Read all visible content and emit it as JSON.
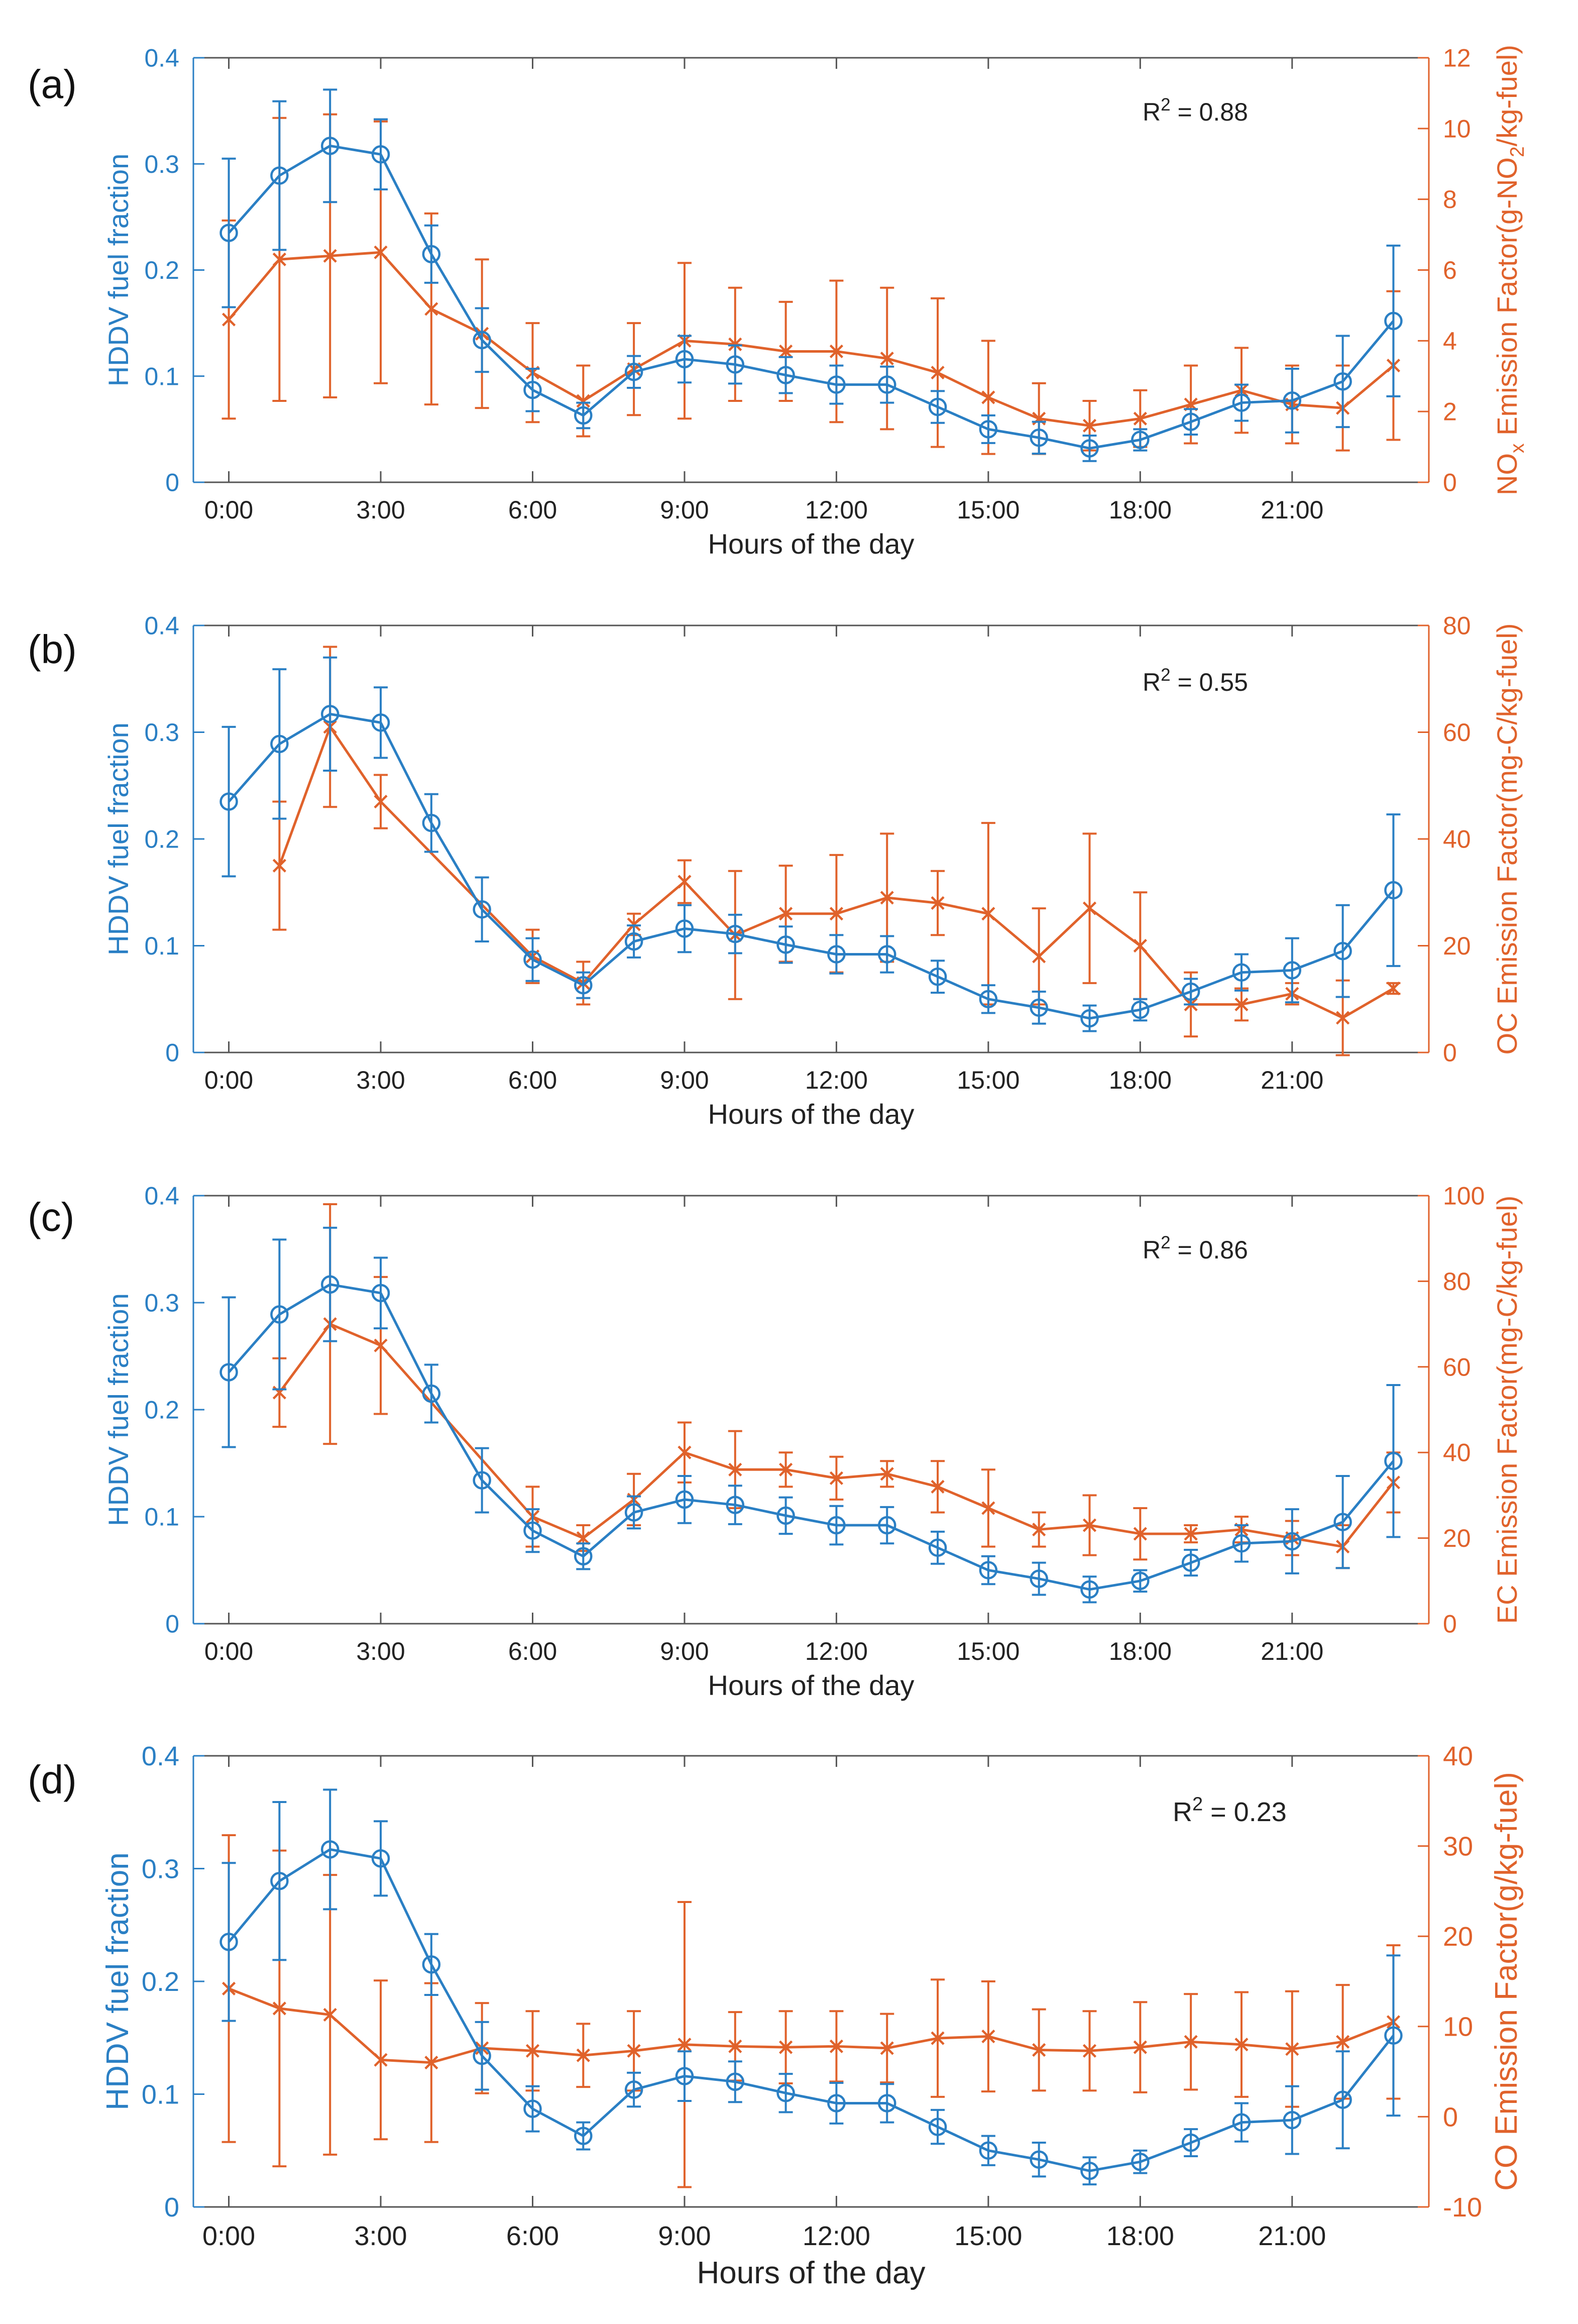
{
  "colors": {
    "hddv": "#2a7fc4",
    "emission": "#e0622b",
    "axis": "#555555",
    "text": "#222222"
  },
  "chart_data": [
    {
      "type": "line",
      "panel_label": "(a)",
      "r2_label": "R",
      "r2_sup": "2",
      "r2_value": " = 0.88",
      "xlabel": "Hours of the day",
      "ylabel_left": "HDDV fuel fraction",
      "ylabel_right_parts": [
        [
          "NO",
          ""
        ],
        [
          "x",
          "sub"
        ],
        [
          " Emission Factor(g-NO",
          ""
        ],
        [
          "2",
          "sub"
        ],
        [
          "/kg-fuel)",
          ""
        ]
      ],
      "ylim_left": [
        0,
        0.4
      ],
      "yticks_left": [
        0,
        0.1,
        0.2,
        0.3,
        0.4
      ],
      "ytick_labels_left": [
        "0",
        "0.1",
        "0.2",
        "0.3",
        "0.4"
      ],
      "ylim_right": [
        0,
        12
      ],
      "yticks_right": [
        0,
        2,
        4,
        6,
        8,
        10,
        12
      ],
      "ytick_labels_right": [
        "0",
        "2",
        "4",
        "6",
        "8",
        "10",
        "12"
      ],
      "xticks": [
        0,
        3,
        6,
        9,
        12,
        15,
        18,
        21
      ],
      "xtick_labels": [
        "0:00",
        "3:00",
        "6:00",
        "9:00",
        "12:00",
        "15:00",
        "18:00",
        "21:00"
      ],
      "series": [
        {
          "name": "HDDV fuel fraction",
          "axis": "left",
          "marker": "circle",
          "x": [
            0,
            1,
            2,
            3,
            4,
            5,
            6,
            7,
            8,
            9,
            10,
            11,
            12,
            13,
            14,
            15,
            16,
            17,
            18,
            19,
            20,
            21,
            22,
            23
          ],
          "values": [
            0.235,
            0.289,
            0.317,
            0.309,
            0.215,
            0.134,
            0.087,
            0.063,
            0.104,
            0.116,
            0.111,
            0.101,
            0.092,
            0.092,
            0.071,
            0.05,
            0.042,
            0.032,
            0.04,
            0.057,
            0.075,
            0.077,
            0.095,
            0.152
          ],
          "err": [
            0.07,
            0.07,
            0.053,
            0.033,
            0.027,
            0.03,
            0.02,
            0.012,
            0.015,
            0.022,
            0.018,
            0.017,
            0.018,
            0.017,
            0.015,
            0.013,
            0.015,
            0.012,
            0.01,
            0.012,
            0.017,
            0.03,
            0.043,
            0.071
          ]
        },
        {
          "name": "NOx Emission Factor",
          "axis": "right",
          "marker": "x",
          "x": [
            0,
            1,
            2,
            3,
            4,
            5,
            6,
            7,
            8,
            9,
            10,
            11,
            12,
            13,
            14,
            15,
            16,
            17,
            18,
            19,
            20,
            21,
            22,
            23
          ],
          "values": [
            4.6,
            6.3,
            6.4,
            6.5,
            4.9,
            4.2,
            3.1,
            2.3,
            3.2,
            4.0,
            3.9,
            3.7,
            3.7,
            3.5,
            3.1,
            2.4,
            1.8,
            1.6,
            1.8,
            2.2,
            2.6,
            2.2,
            2.1,
            3.3
          ],
          "err": [
            2.8,
            4.0,
            4.0,
            3.7,
            2.7,
            2.1,
            1.4,
            1.0,
            1.3,
            2.2,
            1.6,
            1.4,
            2.0,
            2.0,
            2.1,
            1.6,
            1.0,
            0.7,
            0.8,
            1.1,
            1.2,
            1.1,
            1.2,
            2.1
          ]
        }
      ]
    },
    {
      "type": "line",
      "panel_label": "(b)",
      "r2_label": "R",
      "r2_sup": "2",
      "r2_value": " = 0.55",
      "xlabel": "Hours of the day",
      "ylabel_left": "HDDV fuel fraction",
      "ylabel_right_parts": [
        [
          "OC Emission Factor(mg-C/kg-fuel)",
          ""
        ]
      ],
      "ylim_left": [
        0,
        0.4
      ],
      "yticks_left": [
        0,
        0.1,
        0.2,
        0.3,
        0.4
      ],
      "ytick_labels_left": [
        "0",
        "0.1",
        "0.2",
        "0.3",
        "0.4"
      ],
      "ylim_right": [
        0,
        80
      ],
      "yticks_right": [
        0,
        20,
        40,
        60,
        80
      ],
      "ytick_labels_right": [
        "0",
        "20",
        "40",
        "60",
        "80"
      ],
      "xticks": [
        0,
        3,
        6,
        9,
        12,
        15,
        18,
        21
      ],
      "xtick_labels": [
        "0:00",
        "3:00",
        "6:00",
        "9:00",
        "12:00",
        "15:00",
        "18:00",
        "21:00"
      ],
      "series": [
        {
          "name": "HDDV fuel fraction",
          "axis": "left",
          "marker": "circle",
          "x": [
            0,
            1,
            2,
            3,
            4,
            5,
            6,
            7,
            8,
            9,
            10,
            11,
            12,
            13,
            14,
            15,
            16,
            17,
            18,
            19,
            20,
            21,
            22,
            23
          ],
          "values": [
            0.235,
            0.289,
            0.317,
            0.309,
            0.215,
            0.134,
            0.087,
            0.063,
            0.104,
            0.116,
            0.111,
            0.101,
            0.092,
            0.092,
            0.071,
            0.05,
            0.042,
            0.032,
            0.04,
            0.057,
            0.075,
            0.077,
            0.095,
            0.152
          ],
          "err": [
            0.07,
            0.07,
            0.053,
            0.033,
            0.027,
            0.03,
            0.02,
            0.012,
            0.015,
            0.022,
            0.018,
            0.017,
            0.018,
            0.017,
            0.015,
            0.013,
            0.015,
            0.012,
            0.01,
            0.012,
            0.017,
            0.03,
            0.043,
            0.071
          ]
        },
        {
          "name": "OC Emission Factor",
          "axis": "right",
          "marker": "x",
          "x": [
            1,
            2,
            3,
            6,
            7,
            8,
            9,
            10,
            11,
            12,
            13,
            14,
            15,
            16,
            17,
            18,
            19,
            20,
            21,
            22,
            23
          ],
          "values": [
            35,
            61,
            47,
            18,
            13,
            24,
            32,
            22,
            26,
            26,
            29,
            28,
            26,
            18,
            27,
            20,
            9,
            9,
            11,
            6.5,
            12
          ],
          "err": [
            12,
            15,
            5,
            5,
            4,
            2,
            4,
            12,
            9,
            11,
            12,
            6,
            17,
            9,
            14,
            10,
            6,
            3,
            2,
            7,
            1
          ]
        }
      ]
    },
    {
      "type": "line",
      "panel_label": "(c)",
      "r2_label": "R",
      "r2_sup": "2",
      "r2_value": " = 0.86",
      "xlabel": "Hours of the day",
      "ylabel_left": "HDDV fuel fraction",
      "ylabel_right_parts": [
        [
          "EC Emission Factor(mg-C/kg-fuel)",
          ""
        ]
      ],
      "ylim_left": [
        0,
        0.4
      ],
      "yticks_left": [
        0,
        0.1,
        0.2,
        0.3,
        0.4
      ],
      "ytick_labels_left": [
        "0",
        "0.1",
        "0.2",
        "0.3",
        "0.4"
      ],
      "ylim_right": [
        0,
        100
      ],
      "yticks_right": [
        0,
        20,
        40,
        60,
        80,
        100
      ],
      "ytick_labels_right": [
        "0",
        "20",
        "40",
        "60",
        "80",
        "100"
      ],
      "xticks": [
        0,
        3,
        6,
        9,
        12,
        15,
        18,
        21
      ],
      "xtick_labels": [
        "0:00",
        "3:00",
        "6:00",
        "9:00",
        "12:00",
        "15:00",
        "18:00",
        "21:00"
      ],
      "series": [
        {
          "name": "HDDV fuel fraction",
          "axis": "left",
          "marker": "circle",
          "x": [
            0,
            1,
            2,
            3,
            4,
            5,
            6,
            7,
            8,
            9,
            10,
            11,
            12,
            13,
            14,
            15,
            16,
            17,
            18,
            19,
            20,
            21,
            22,
            23
          ],
          "values": [
            0.235,
            0.289,
            0.317,
            0.309,
            0.215,
            0.134,
            0.087,
            0.063,
            0.104,
            0.116,
            0.111,
            0.101,
            0.092,
            0.092,
            0.071,
            0.05,
            0.042,
            0.032,
            0.04,
            0.057,
            0.075,
            0.077,
            0.095,
            0.152
          ],
          "err": [
            0.07,
            0.07,
            0.053,
            0.033,
            0.027,
            0.03,
            0.02,
            0.012,
            0.015,
            0.022,
            0.018,
            0.017,
            0.018,
            0.017,
            0.015,
            0.013,
            0.015,
            0.012,
            0.01,
            0.012,
            0.017,
            0.03,
            0.043,
            0.071
          ]
        },
        {
          "name": "EC Emission Factor",
          "axis": "right",
          "marker": "x",
          "x": [
            1,
            2,
            3,
            6,
            7,
            8,
            9,
            10,
            11,
            12,
            13,
            14,
            15,
            16,
            17,
            18,
            19,
            20,
            21,
            22,
            23
          ],
          "values": [
            54,
            70,
            65,
            25,
            20,
            29,
            40,
            36,
            36,
            34,
            35,
            32,
            27,
            22,
            23,
            21,
            21,
            22,
            20,
            18,
            33
          ],
          "err": [
            8,
            28,
            16,
            7,
            3,
            6,
            7,
            9,
            4,
            5,
            3,
            6,
            9,
            4,
            7,
            6,
            2,
            3,
            4,
            5,
            7
          ]
        }
      ]
    },
    {
      "type": "line",
      "panel_label": "(d)",
      "r2_label": "R",
      "r2_sup": "2",
      "r2_value": " = 0.23",
      "xlabel": "Hours of the day",
      "ylabel_left": "HDDV fuel fraction",
      "ylabel_right_parts": [
        [
          "CO Emission Factor(g/kg-fuel)",
          ""
        ]
      ],
      "ylim_left": [
        0,
        0.4
      ],
      "yticks_left": [
        0,
        0.1,
        0.2,
        0.3,
        0.4
      ],
      "ytick_labels_left": [
        "0",
        "0.1",
        "0.2",
        "0.3",
        "0.4"
      ],
      "ylim_right": [
        -10,
        40
      ],
      "yticks_right": [
        -10,
        0,
        10,
        20,
        30,
        40
      ],
      "ytick_labels_right": [
        "-10",
        "0",
        "10",
        "20",
        "30",
        "40"
      ],
      "xticks": [
        0,
        3,
        6,
        9,
        12,
        15,
        18,
        21
      ],
      "xtick_labels": [
        "0:00",
        "3:00",
        "6:00",
        "9:00",
        "12:00",
        "15:00",
        "18:00",
        "21:00"
      ],
      "series": [
        {
          "name": "HDDV fuel fraction",
          "axis": "left",
          "marker": "circle",
          "x": [
            0,
            1,
            2,
            3,
            4,
            5,
            6,
            7,
            8,
            9,
            10,
            11,
            12,
            13,
            14,
            15,
            16,
            17,
            18,
            19,
            20,
            21,
            22,
            23
          ],
          "values": [
            0.235,
            0.289,
            0.317,
            0.309,
            0.215,
            0.134,
            0.087,
            0.063,
            0.104,
            0.116,
            0.111,
            0.101,
            0.092,
            0.092,
            0.071,
            0.05,
            0.042,
            0.032,
            0.04,
            0.057,
            0.075,
            0.077,
            0.095,
            0.152
          ],
          "err": [
            0.07,
            0.07,
            0.053,
            0.033,
            0.027,
            0.03,
            0.02,
            0.012,
            0.015,
            0.022,
            0.018,
            0.017,
            0.018,
            0.017,
            0.015,
            0.013,
            0.015,
            0.012,
            0.01,
            0.012,
            0.017,
            0.03,
            0.043,
            0.071
          ]
        },
        {
          "name": "CO Emission Factor",
          "axis": "right",
          "marker": "x",
          "x": [
            0,
            1,
            2,
            3,
            4,
            5,
            6,
            7,
            8,
            9,
            10,
            11,
            12,
            13,
            14,
            15,
            16,
            17,
            18,
            19,
            20,
            21,
            22,
            23
          ],
          "values": [
            14.2,
            12.0,
            11.3,
            6.3,
            6.0,
            7.6,
            7.3,
            6.8,
            7.3,
            8.0,
            7.8,
            7.7,
            7.8,
            7.6,
            8.7,
            8.9,
            7.4,
            7.3,
            7.7,
            8.3,
            8.0,
            7.5,
            8.3,
            10.5
          ],
          "err": [
            17.0,
            17.5,
            15.5,
            8.8,
            8.8,
            5.0,
            4.4,
            3.5,
            4.4,
            15.8,
            3.8,
            4.0,
            3.9,
            3.8,
            6.5,
            6.1,
            4.5,
            4.4,
            5.0,
            5.3,
            5.8,
            6.4,
            6.3,
            8.5
          ]
        }
      ]
    }
  ]
}
